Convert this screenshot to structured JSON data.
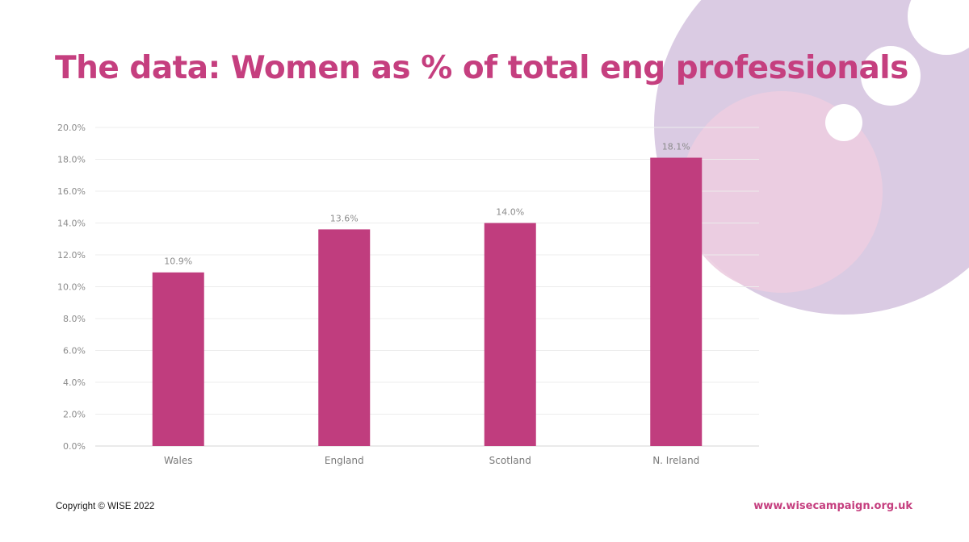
{
  "slide": {
    "title": "The data: Women as % of total eng professionals",
    "copyright": "Copyright © WISE 2022",
    "website": "www.wisecampaign.org.uk"
  },
  "colors": {
    "accent": "#c53f7f",
    "bar": "#c03d7e",
    "deco_purple": "#dacbe3",
    "deco_pink": "#eccde0"
  },
  "chart_data": {
    "type": "bar",
    "title": "",
    "xlabel": "",
    "ylabel": "",
    "categories": [
      "Wales",
      "England",
      "Scotland",
      "N. Ireland"
    ],
    "values": [
      10.9,
      13.6,
      14.0,
      18.1
    ],
    "value_labels": [
      "10.9%",
      "13.6%",
      "14.0%",
      "18.1%"
    ],
    "ylim": [
      0,
      20
    ],
    "y_ticks": [
      "0.0%",
      "2.0%",
      "4.0%",
      "6.0%",
      "8.0%",
      "10.0%",
      "12.0%",
      "14.0%",
      "16.0%",
      "18.0%",
      "20.0%"
    ],
    "grid": true,
    "legend": "none"
  }
}
